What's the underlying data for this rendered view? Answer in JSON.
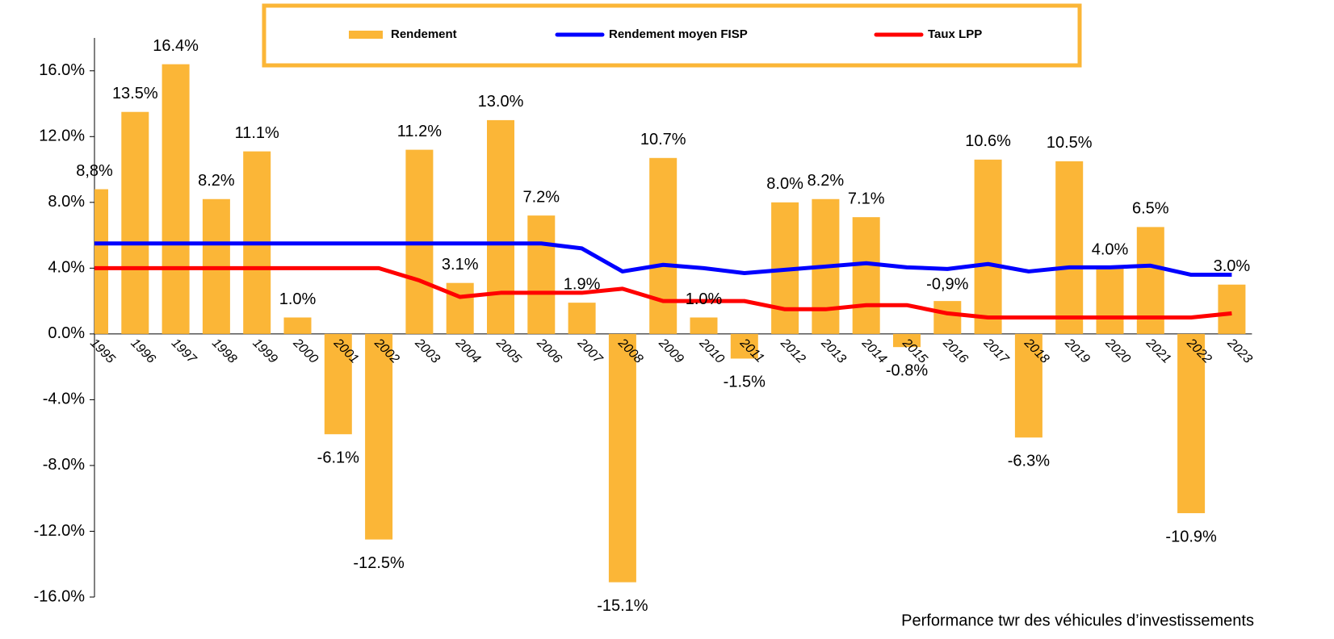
{
  "chart_data": {
    "type": "bar_line",
    "categories": [
      "1995",
      "1996",
      "1997",
      "1998",
      "1999",
      "2000",
      "2001",
      "2002",
      "2003",
      "2004",
      "2005",
      "2006",
      "2007",
      "2008",
      "2009",
      "2010",
      "2011",
      "2012",
      "2013",
      "2014",
      "2015",
      "2016",
      "2017",
      "2018",
      "2019",
      "2020",
      "2021",
      "2022",
      "2023"
    ],
    "bars": {
      "name": "Rendement",
      "color": "#fbb637",
      "values": [
        8.8,
        13.5,
        16.4,
        8.2,
        11.1,
        1.0,
        -6.1,
        -12.5,
        11.2,
        3.1,
        13.0,
        7.2,
        1.9,
        -15.1,
        10.7,
        1.0,
        -1.5,
        8.0,
        8.2,
        7.1,
        -0.8,
        2.0,
        10.6,
        -6.3,
        10.5,
        4.0,
        6.5,
        -10.9,
        3.0
      ],
      "value_labels": [
        "8,8%",
        "13.5%",
        "16.4%",
        "8.2%",
        "11.1%",
        "1.0%",
        "-6.1%",
        "-12.5%",
        "11.2%",
        "3.1%",
        "13.0%",
        "7.2%",
        "1.9%",
        "-15.1%",
        "10.7%",
        "1.0%",
        "-1.5%",
        "8.0%",
        "8.2%",
        "7.1%",
        "-0.8%",
        null,
        "10.6%",
        "-6.3%",
        "10.5%",
        "4.0%",
        "6.5%",
        "-10.9%",
        "3.0%"
      ]
    },
    "series": [
      {
        "name": "Rendement moyen FISP",
        "color": "#0000ff",
        "values": [
          5.5,
          5.5,
          5.5,
          5.5,
          5.5,
          5.5,
          5.5,
          5.5,
          5.5,
          5.5,
          5.5,
          5.5,
          5.2,
          3.8,
          4.2,
          4.0,
          3.7,
          3.9,
          4.1,
          4.3,
          4.05,
          3.95,
          4.25,
          3.8,
          4.05,
          4.05,
          4.15,
          3.6,
          3.6
        ]
      },
      {
        "name": "Taux LPP",
        "color": "#ff0000",
        "values": [
          4.0,
          4.0,
          4.0,
          4.0,
          4.0,
          4.0,
          4.0,
          4.0,
          3.25,
          2.25,
          2.5,
          2.5,
          2.5,
          2.75,
          2.0,
          2.0,
          2.0,
          1.5,
          1.5,
          1.75,
          1.75,
          1.25,
          1.0,
          1.0,
          1.0,
          1.0,
          1.0,
          1.0,
          1.25
        ]
      }
    ],
    "annotations": [
      "-0,9%"
    ],
    "ylim": [
      -16,
      18
    ],
    "yticks": [
      {
        "value": -16,
        "label": "-16.0%"
      },
      {
        "value": -12,
        "label": "-12.0%"
      },
      {
        "value": -8,
        "label": "-8.0%"
      },
      {
        "value": -4,
        "label": "-4.0%"
      },
      {
        "value": 0,
        "label": "0.0%"
      },
      {
        "value": 4,
        "label": "4.0%"
      },
      {
        "value": 8,
        "label": "8.0%"
      },
      {
        "value": 12,
        "label": "12.0%"
      },
      {
        "value": 16,
        "label": "16.0%"
      }
    ],
    "footnote": "Performance twr des véhicules d’investissements"
  }
}
